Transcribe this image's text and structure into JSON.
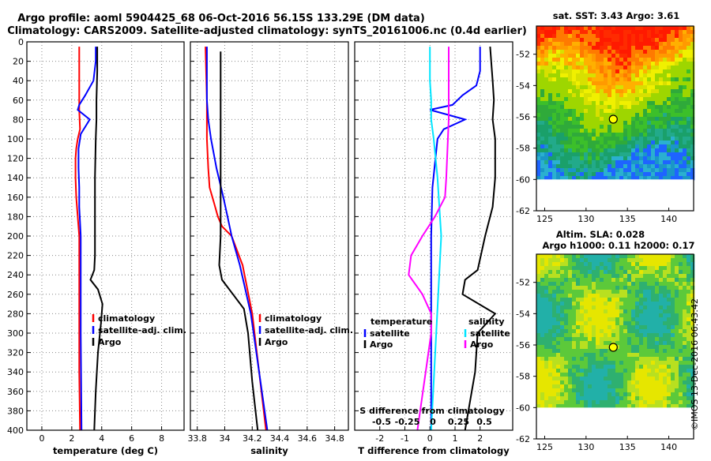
{
  "title_line1": "Argo profile: aoml 5904425_68 06-Oct-2016 56.15S 133.29E (DM data)",
  "title_line2": "Climatology: CARS2009. Satellite-adjusted climatology: synTS_20161006.nc (0.4d earlier)",
  "copyright": "©IMOS 13-Dec-2016 06:43:42",
  "colors": {
    "climatology": "#ff0000",
    "satellite": "#0000ff",
    "argo": "#000000",
    "cyan": "#00e5ff",
    "magenta": "#ff00ff"
  },
  "chart_data": [
    {
      "type": "line",
      "id": "temperature",
      "xlabel": "temperature (deg C)",
      "ylabel": "",
      "xlim": [
        -1,
        9.5
      ],
      "ylim": [
        400,
        0
      ],
      "xticks": [
        0,
        2,
        4,
        6,
        8
      ],
      "xtick_labels": [
        "0",
        "2",
        "4",
        "6",
        "8"
      ],
      "yticks": [
        0,
        20,
        40,
        60,
        80,
        100,
        120,
        140,
        160,
        180,
        200,
        220,
        240,
        260,
        280,
        300,
        320,
        340,
        360,
        380,
        400
      ],
      "ytick_labels": [
        "0",
        "20",
        "40",
        "60",
        "80",
        "100",
        "120",
        "140",
        "160",
        "180",
        "200",
        "220",
        "240",
        "260",
        "280",
        "300",
        "320",
        "340",
        "360",
        "380",
        "400"
      ],
      "series": [
        {
          "name": "climatology",
          "color": "#ff0000",
          "depth": [
            5,
            60,
            70,
            90,
            100,
            110,
            120,
            140,
            160,
            180,
            200,
            220,
            260,
            300,
            340,
            400
          ],
          "values": [
            2.5,
            2.5,
            2.5,
            2.55,
            2.4,
            2.3,
            2.25,
            2.25,
            2.3,
            2.4,
            2.5,
            2.5,
            2.5,
            2.5,
            2.5,
            2.55
          ]
        },
        {
          "name": "satellite-adj. clim.",
          "color": "#0000ff",
          "depth": [
            5,
            20,
            40,
            55,
            65,
            70,
            80,
            95,
            110,
            130,
            150,
            170,
            200,
            240,
            300,
            400
          ],
          "values": [
            3.6,
            3.6,
            3.45,
            2.9,
            2.5,
            2.4,
            3.2,
            2.6,
            2.45,
            2.45,
            2.5,
            2.5,
            2.6,
            2.6,
            2.6,
            2.65
          ]
        },
        {
          "name": "Argo",
          "color": "#000000",
          "depth": [
            5,
            30,
            60,
            80,
            100,
            140,
            180,
            220,
            235,
            245,
            255,
            270,
            290,
            320,
            360,
            400
          ],
          "values": [
            3.7,
            3.7,
            3.65,
            3.65,
            3.6,
            3.55,
            3.55,
            3.55,
            3.5,
            3.25,
            3.75,
            4.05,
            3.95,
            3.75,
            3.6,
            3.5
          ]
        }
      ],
      "legend": [
        "climatology",
        "satellite-adj. clim.",
        "Argo"
      ]
    },
    {
      "type": "line",
      "id": "salinity",
      "xlabel": "salinity",
      "ylabel": "",
      "xlim": [
        33.75,
        34.9
      ],
      "ylim": [
        400,
        0
      ],
      "xticks": [
        33.8,
        34,
        34.2,
        34.4,
        34.6,
        34.8
      ],
      "xtick_labels": [
        "33.8",
        "34",
        "34.2",
        "34.4",
        "34.6",
        "34.8"
      ],
      "series": [
        {
          "name": "climatology",
          "color": "#ff0000",
          "depth": [
            5,
            60,
            100,
            130,
            150,
            165,
            180,
            190,
            200,
            230,
            280,
            340,
            400
          ],
          "values": [
            33.86,
            33.87,
            33.87,
            33.88,
            33.89,
            33.92,
            33.95,
            33.98,
            34.05,
            34.13,
            34.2,
            34.25,
            34.3
          ]
        },
        {
          "name": "satellite-adj. clim.",
          "color": "#0000ff",
          "depth": [
            5,
            60,
            80,
            100,
            130,
            160,
            180,
            200,
            230,
            280,
            340,
            400
          ],
          "values": [
            33.87,
            33.87,
            33.88,
            33.9,
            33.94,
            33.99,
            34.02,
            34.05,
            34.11,
            34.19,
            34.25,
            34.31
          ]
        },
        {
          "name": "Argo",
          "color": "#000000",
          "depth": [
            10,
            100,
            170,
            200,
            230,
            245,
            260,
            275,
            300,
            350,
            400
          ],
          "values": [
            33.97,
            33.97,
            33.97,
            33.97,
            33.96,
            33.98,
            34.06,
            34.14,
            34.17,
            34.2,
            34.24
          ]
        }
      ],
      "legend": [
        "climatology",
        "satellite-adj. clim.",
        "Argo"
      ]
    },
    {
      "type": "line",
      "id": "differences",
      "xlabel": "T difference from climatology",
      "ylabel": "",
      "xlim": [
        -3,
        3.3
      ],
      "ylim": [
        400,
        0
      ],
      "xticks": [
        -2,
        -1,
        0,
        1,
        2
      ],
      "xtick_labels": [
        "-2",
        "-1",
        "0",
        "1",
        "2"
      ],
      "top_axis_label": "S difference from climatology",
      "top_xticks": [
        -0.5,
        -0.25,
        0,
        0.25,
        0.5
      ],
      "top_xtick_labels": [
        "-0.5",
        "-0.25",
        "0",
        "0.25",
        "0.5"
      ],
      "series": [
        {
          "name": "T satellite",
          "color": "#0000ff",
          "depth": [
            5,
            30,
            45,
            55,
            65,
            70,
            80,
            90,
            100,
            150,
            200,
            300,
            400
          ],
          "values": [
            2.0,
            2.0,
            1.85,
            1.3,
            0.9,
            0,
            1.4,
            0.55,
            0.3,
            0.1,
            0.05,
            0.05,
            0.05
          ]
        },
        {
          "name": "T Argo",
          "color": "#000000",
          "depth": [
            5,
            40,
            60,
            80,
            100,
            140,
            170,
            200,
            235,
            245,
            260,
            280,
            300,
            340,
            400
          ],
          "values": [
            2.4,
            2.5,
            2.55,
            2.5,
            2.6,
            2.6,
            2.5,
            2.2,
            1.9,
            1.4,
            1.3,
            2.6,
            1.9,
            1.8,
            1.4
          ]
        },
        {
          "name": "S satellite",
          "color": "#00e5ff",
          "depth": [
            5,
            40,
            60,
            80,
            100,
            140,
            200,
            300,
            400
          ],
          "values": [
            0,
            0,
            0.05,
            0.05,
            0.15,
            0.3,
            0.45,
            0.25,
            0.05
          ]
        },
        {
          "name": "S Argo",
          "color": "#ff00ff",
          "depth": [
            5,
            80,
            140,
            160,
            180,
            200,
            220,
            240,
            260,
            280,
            300,
            400
          ],
          "values": [
            0.75,
            0.75,
            0.65,
            0.6,
            0.2,
            -0.3,
            -0.75,
            -0.85,
            -0.3,
            0.05,
            0.05,
            -0.5
          ]
        }
      ],
      "legend_left_title": "temperature",
      "legend_right_title": "salinity",
      "legend_left": [
        "satellite",
        "Argo"
      ],
      "legend_right": [
        "satellite",
        "Argo"
      ]
    },
    {
      "type": "heatmap",
      "id": "sst-map",
      "title": "sat. SST: 3.43 Argo: 3.61",
      "xlim": [
        124,
        143
      ],
      "ylim": [
        -62,
        -50.2
      ],
      "xticks": [
        125,
        130,
        135,
        140
      ],
      "xtick_labels": [
        "125",
        "130",
        "135",
        "140"
      ],
      "yticks": [
        -52,
        -54,
        -56,
        -58,
        -60,
        -62
      ],
      "ytick_labels": [
        "-52",
        "-54",
        "-56",
        "-58",
        "-60",
        "-62"
      ],
      "argo_position": [
        133.29,
        -56.15
      ]
    },
    {
      "type": "heatmap",
      "id": "sla-map",
      "title": "Altim. SLA: 0.028",
      "subtitle": "Argo h1000: 0.11 h2000: 0.17",
      "xlim": [
        124,
        143
      ],
      "ylim": [
        -62,
        -50.2
      ],
      "xticks": [
        125,
        130,
        135,
        140
      ],
      "xtick_labels": [
        "125",
        "130",
        "135",
        "140"
      ],
      "yticks": [
        -52,
        -54,
        -56,
        -58,
        -60,
        -62
      ],
      "ytick_labels": [
        "-52",
        "-54",
        "-56",
        "-58",
        "-60",
        "-62"
      ],
      "argo_position": [
        133.29,
        -56.15
      ]
    }
  ]
}
